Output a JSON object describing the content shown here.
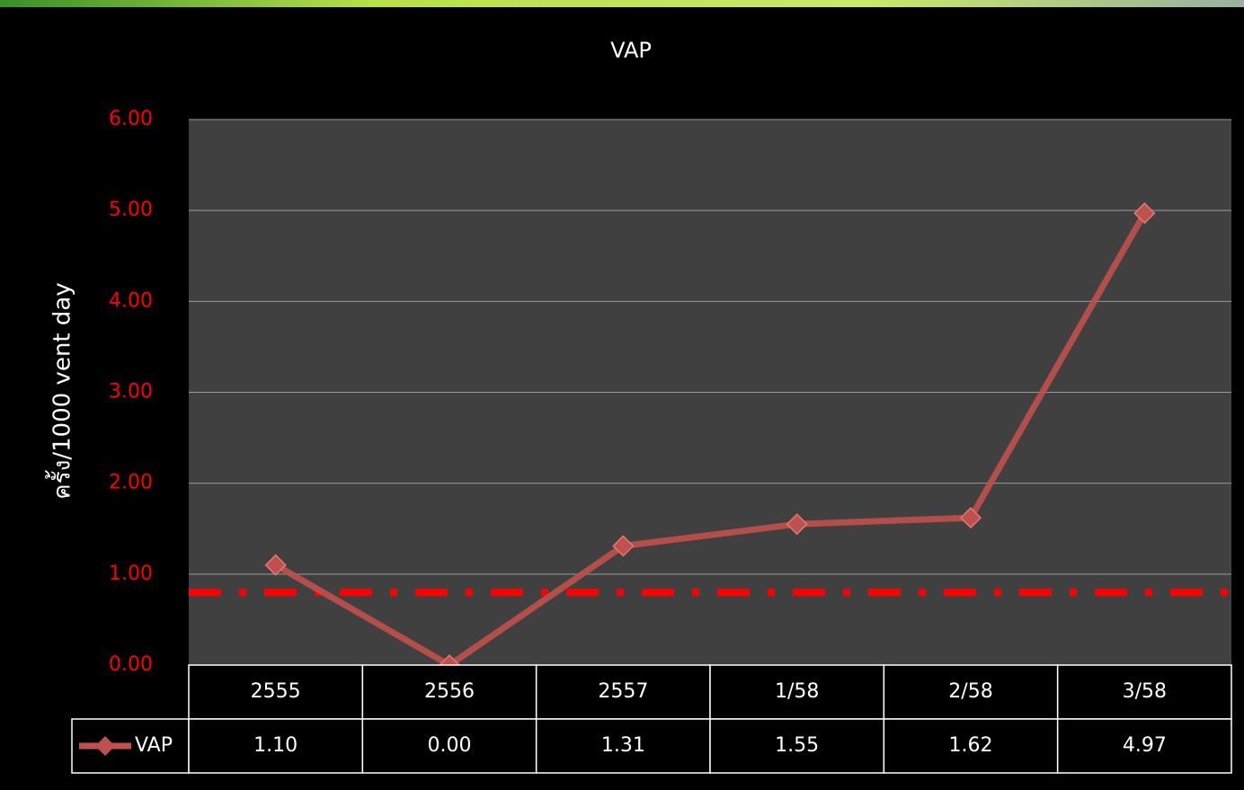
{
  "chart_data": {
    "type": "line",
    "title": "VAP",
    "y_label": "ครั้ง/1000 vent day",
    "categories": [
      "2555",
      "2556",
      "2557",
      "1/58",
      "2/58",
      "3/58"
    ],
    "series": [
      {
        "name": "VAP",
        "color": "#c0504d",
        "values": [
          1.1,
          0.0,
          1.31,
          1.55,
          1.62,
          4.97
        ],
        "value_labels": [
          "1.10",
          "0.00",
          "1.31",
          "1.55",
          "1.62",
          "4.97"
        ]
      }
    ],
    "ylim": [
      0,
      6
    ],
    "yticks": [
      {
        "value": 0,
        "label": "0.00"
      },
      {
        "value": 1,
        "label": "1.00"
      },
      {
        "value": 2,
        "label": "2.00"
      },
      {
        "value": 3,
        "label": "3.00"
      },
      {
        "value": 4,
        "label": "4.00"
      },
      {
        "value": 5,
        "label": "5.00"
      },
      {
        "value": 6,
        "label": "6.00"
      }
    ],
    "grid": true,
    "reference_line": {
      "value": 0.8,
      "color": "#ff0000"
    },
    "data_table": true
  }
}
